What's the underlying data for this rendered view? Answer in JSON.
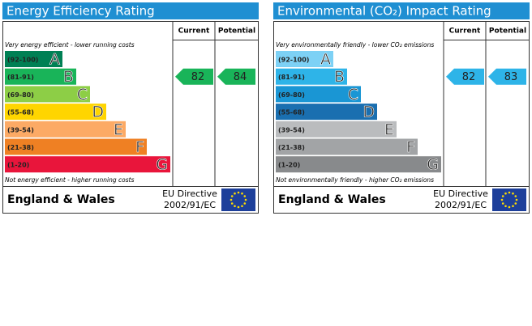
{
  "panels": [
    {
      "title": "Energy Efficiency Rating",
      "columns": [
        "Current",
        "Potential"
      ],
      "top_note": "Very energy efficient - lower running costs",
      "bottom_note": "Not energy efficient - higher running costs",
      "bands": [
        {
          "range": "(92-100)",
          "letter": "A",
          "color": "#008054"
        },
        {
          "range": "(81-91)",
          "letter": "B",
          "color": "#19b459"
        },
        {
          "range": "(69-80)",
          "letter": "C",
          "color": "#8dce46"
        },
        {
          "range": "(55-68)",
          "letter": "D",
          "color": "#ffd500"
        },
        {
          "range": "(39-54)",
          "letter": "E",
          "color": "#fcaa65"
        },
        {
          "range": "(21-38)",
          "letter": "F",
          "color": "#ef8023"
        },
        {
          "range": "(1-20)",
          "letter": "G",
          "color": "#e9153b"
        }
      ],
      "current": 82,
      "potential": 84,
      "footer": {
        "region": "England & Wales",
        "directive": [
          "EU Directive",
          "2002/91/EC"
        ]
      }
    },
    {
      "title": "Environmental (CO₂) Impact Rating",
      "columns": [
        "Current",
        "Potential"
      ],
      "top_note": "Very environmentally friendly - lower CO₂ emissions",
      "bottom_note": "Not environmentally friendly - higher CO₂ emissions",
      "bands": [
        {
          "range": "(92-100)",
          "letter": "A",
          "color": "#7dd1f5"
        },
        {
          "range": "(81-91)",
          "letter": "B",
          "color": "#2eb4e8"
        },
        {
          "range": "(69-80)",
          "letter": "C",
          "color": "#1a96d4"
        },
        {
          "range": "(55-68)",
          "letter": "D",
          "color": "#1a6fb0"
        },
        {
          "range": "(39-54)",
          "letter": "E",
          "color": "#babcbe"
        },
        {
          "range": "(21-38)",
          "letter": "F",
          "color": "#a2a4a6"
        },
        {
          "range": "(1-20)",
          "letter": "G",
          "color": "#888a8c"
        }
      ],
      "current": 82,
      "potential": 83,
      "footer": {
        "region": "England & Wales",
        "directive": [
          "EU Directive",
          "2002/91/EC"
        ]
      }
    }
  ]
}
